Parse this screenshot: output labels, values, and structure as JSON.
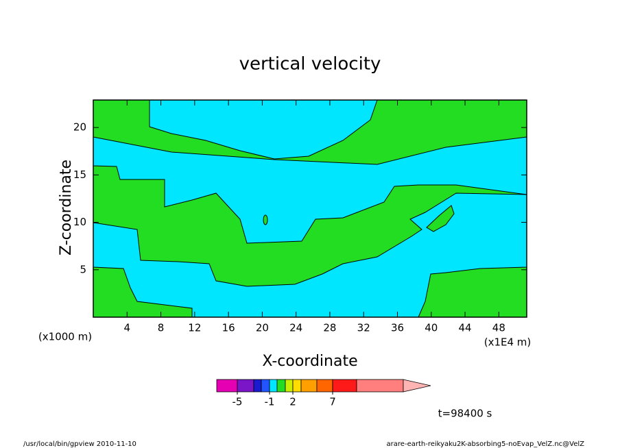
{
  "chart_data": {
    "type": "contour",
    "title": "vertical velocity",
    "x_label": "X-coordinate",
    "y_label": "Z-coordinate",
    "x_unit_note": "(x1000 m)",
    "x_scale_note": "(x1E4 m)",
    "time_label": "t=98400 s",
    "xlim": [
      0,
      51.3
    ],
    "xticks": [
      4,
      8,
      12,
      16,
      20,
      24,
      28,
      32,
      36,
      40,
      44,
      48
    ],
    "ylim": [
      0,
      22.9
    ],
    "yticks": [
      5,
      10,
      15,
      20
    ],
    "colorbar": {
      "colors": [
        "#e600b4",
        "#7a16c8",
        "#1a1ad0",
        "#2255ff",
        "#00e6ff",
        "#22dd22",
        "#ccee00",
        "#ffdd00",
        "#ffa000",
        "#ff6600",
        "#ff1a1a",
        "#ff7f7f",
        "#ffb4b4"
      ],
      "ticks": [
        -5,
        -1,
        2,
        7
      ]
    },
    "footer_left": "/usr/local/bin/gpview  2010-11-10",
    "footer_right": "arare-earth-reikyaku2K-absorbing5-noEvap_VelZ.nc@VelZ"
  }
}
